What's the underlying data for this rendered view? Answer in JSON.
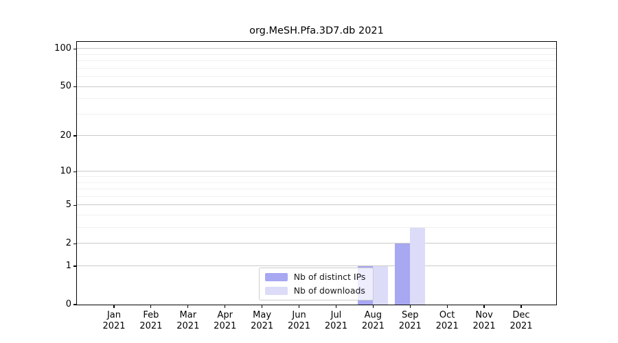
{
  "chart_data": {
    "type": "bar",
    "title": "org.MeSH.Pfa.3D7.db 2021",
    "x_tick_labels": [
      {
        "month": "Jan",
        "year": "2021"
      },
      {
        "month": "Feb",
        "year": "2021"
      },
      {
        "month": "Mar",
        "year": "2021"
      },
      {
        "month": "Apr",
        "year": "2021"
      },
      {
        "month": "May",
        "year": "2021"
      },
      {
        "month": "Jun",
        "year": "2021"
      },
      {
        "month": "Jul",
        "year": "2021"
      },
      {
        "month": "Aug",
        "year": "2021"
      },
      {
        "month": "Sep",
        "year": "2021"
      },
      {
        "month": "Oct",
        "year": "2021"
      },
      {
        "month": "Nov",
        "year": "2021"
      },
      {
        "month": "Dec",
        "year": "2021"
      }
    ],
    "series": [
      {
        "name": "Nb of distinct IPs",
        "color": "#a7a7f2",
        "values": [
          0,
          0,
          0,
          0,
          0,
          0,
          0,
          1,
          2,
          0,
          0,
          0
        ]
      },
      {
        "name": "Nb of downloads",
        "color": "#dcdcf8",
        "values": [
          0,
          0,
          0,
          0,
          0,
          0,
          0,
          1,
          3,
          0,
          0,
          0
        ]
      }
    ],
    "yscale": "log1p",
    "ylim": [
      0,
      113.6
    ],
    "y_tick_values": [
      0,
      1,
      2,
      5,
      10,
      20,
      50,
      100
    ],
    "y_gridline_values": [
      1,
      2,
      3,
      4,
      5,
      6,
      7,
      8,
      9,
      10,
      20,
      30,
      40,
      50,
      60,
      70,
      80,
      90,
      100
    ],
    "y_major_gridlines": [
      1,
      2,
      5,
      10,
      20,
      50,
      100
    ],
    "grid": true,
    "legend": {
      "position": "lower-center",
      "frame_alpha": 0.8
    }
  },
  "colors": {
    "background": "#ffffff",
    "spine": "#000000",
    "major_grid": "#c9c9c9",
    "minor_grid": "#f0f0f0",
    "tick_text": "#000000",
    "legend_border": "#cccccc"
  }
}
